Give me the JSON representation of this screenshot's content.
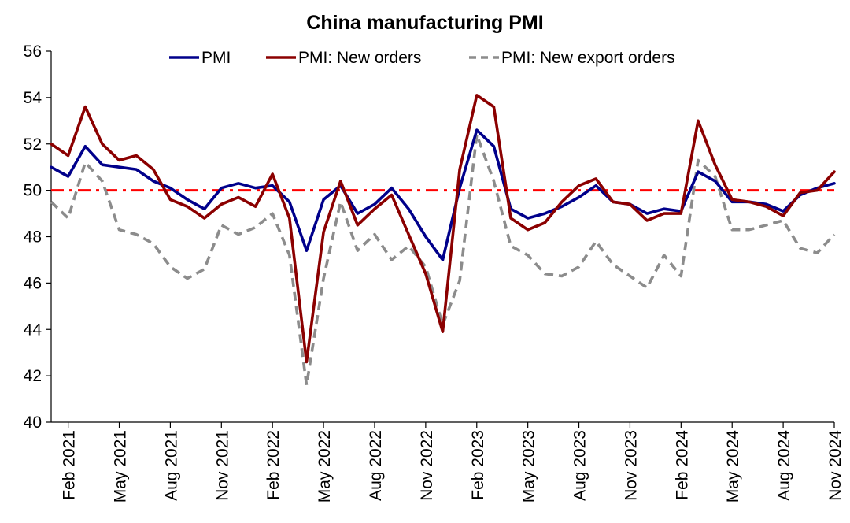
{
  "chart_data": {
    "type": "line",
    "title": "China manufacturing PMI",
    "xlabel": "",
    "ylabel": "",
    "ylim": [
      40,
      56
    ],
    "yticks": [
      40,
      42,
      44,
      46,
      48,
      50,
      52,
      54,
      56
    ],
    "x_tick_labels": [
      "Feb 2021",
      "May 2021",
      "Aug 2021",
      "Nov 2021",
      "Feb 2022",
      "May 2022",
      "Aug 2022",
      "Nov 2022",
      "Feb 2023",
      "May 2023",
      "Aug 2023",
      "Nov 2023",
      "Feb 2024",
      "May 2024",
      "Aug 2024",
      "Nov 2024"
    ],
    "x_months": [
      "Jan 2021",
      "Feb 2021",
      "Mar 2021",
      "Apr 2021",
      "May 2021",
      "Jun 2021",
      "Jul 2021",
      "Aug 2021",
      "Sep 2021",
      "Oct 2021",
      "Nov 2021",
      "Dec 2021",
      "Jan 2022",
      "Feb 2022",
      "Mar 2022",
      "Apr 2022",
      "May 2022",
      "Jun 2022",
      "Jul 2022",
      "Aug 2022",
      "Sep 2022",
      "Oct 2022",
      "Nov 2022",
      "Dec 2022",
      "Jan 2023",
      "Feb 2023",
      "Mar 2023",
      "Apr 2023",
      "May 2023",
      "Jun 2023",
      "Jul 2023",
      "Aug 2023",
      "Sep 2023",
      "Oct 2023",
      "Nov 2023",
      "Dec 2023",
      "Jan 2024",
      "Feb 2024",
      "Mar 2024",
      "Apr 2024",
      "May 2024",
      "Jun 2024",
      "Jul 2024",
      "Aug 2024",
      "Sep 2024",
      "Oct 2024",
      "Nov 2024"
    ],
    "reference_line": {
      "value": 50,
      "color": "#ff0000",
      "style": "dash-dot"
    },
    "legend_position": "top",
    "grid": false,
    "series": [
      {
        "name": "PMI",
        "color": "#00008b",
        "dash": "solid",
        "values": [
          51.0,
          50.6,
          51.9,
          51.1,
          51.0,
          50.9,
          50.4,
          50.1,
          49.6,
          49.2,
          50.1,
          50.3,
          50.1,
          50.2,
          49.5,
          47.4,
          49.6,
          50.2,
          49.0,
          49.4,
          50.1,
          49.2,
          48.0,
          47.0,
          50.1,
          52.6,
          51.9,
          49.2,
          48.8,
          49.0,
          49.3,
          49.7,
          50.2,
          49.5,
          49.4,
          49.0,
          49.2,
          49.1,
          50.8,
          50.4,
          49.5,
          49.5,
          49.4,
          49.1,
          49.8,
          50.1,
          50.3
        ]
      },
      {
        "name": "PMI: New orders",
        "color": "#8b0000",
        "dash": "solid",
        "values": [
          52.0,
          51.5,
          53.6,
          52.0,
          51.3,
          51.5,
          50.9,
          49.6,
          49.3,
          48.8,
          49.4,
          49.7,
          49.3,
          50.7,
          48.8,
          42.6,
          48.2,
          50.4,
          48.5,
          49.2,
          49.8,
          48.1,
          46.4,
          43.9,
          50.9,
          54.1,
          53.6,
          48.8,
          48.3,
          48.6,
          49.5,
          50.2,
          50.5,
          49.5,
          49.4,
          48.7,
          49.0,
          49.0,
          53.0,
          51.1,
          49.6,
          49.5,
          49.3,
          48.9,
          49.9,
          50.0,
          50.8
        ]
      },
      {
        "name": "PMI: New export orders",
        "color": "#8c8c8c",
        "dash": "dashed",
        "values": [
          49.5,
          48.8,
          51.2,
          50.4,
          48.3,
          48.1,
          47.7,
          46.7,
          46.2,
          46.6,
          48.5,
          48.1,
          48.4,
          49.0,
          47.2,
          41.6,
          46.2,
          49.5,
          47.4,
          48.1,
          47.0,
          47.6,
          46.7,
          44.2,
          46.1,
          52.4,
          50.4,
          47.6,
          47.2,
          46.4,
          46.3,
          46.7,
          47.8,
          46.8,
          46.3,
          45.8,
          47.2,
          46.3,
          51.3,
          50.6,
          48.3,
          48.3,
          48.5,
          48.7,
          47.5,
          47.3,
          48.1
        ]
      }
    ]
  }
}
